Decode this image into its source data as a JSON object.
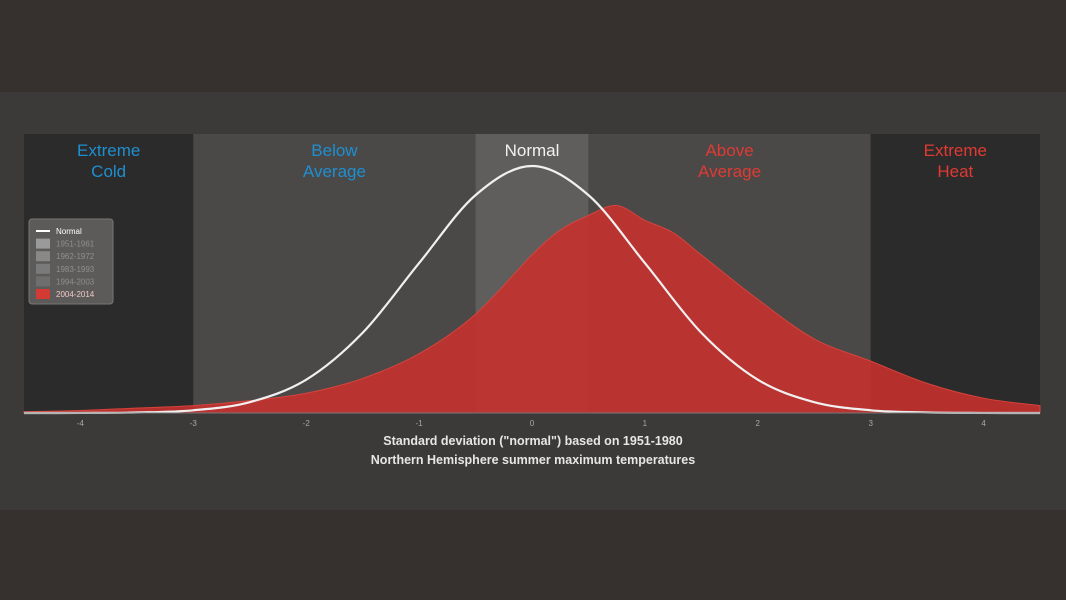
{
  "chart_data": {
    "type": "area",
    "xlim": [
      -4.5,
      4.5
    ],
    "ylim": [
      0,
      1
    ],
    "x_ticks": [
      "-4",
      "-3",
      "-2",
      "-1",
      "0",
      "1",
      "2",
      "3",
      "4"
    ],
    "regions": [
      {
        "name": "extreme-cold",
        "lines": [
          "Extreme",
          "Cold"
        ],
        "x": [
          -4.5,
          -3
        ],
        "color": "#1e8fd0"
      },
      {
        "name": "below-average",
        "lines": [
          "Below",
          "Average"
        ],
        "x": [
          -3,
          -0.5
        ],
        "color": "#1e8fd0"
      },
      {
        "name": "normal",
        "lines": [
          "Normal"
        ],
        "x": [
          -0.5,
          0.5
        ],
        "color": "#f2f2f2"
      },
      {
        "name": "above-average",
        "lines": [
          "Above",
          "Average"
        ],
        "x": [
          0.5,
          3
        ],
        "color": "#e03a33"
      },
      {
        "name": "extreme-heat",
        "lines": [
          "Extreme",
          "Heat"
        ],
        "x": [
          3,
          4.5
        ],
        "color": "#e03a33"
      }
    ],
    "series": [
      {
        "name": "Normal",
        "kind": "line",
        "color": "#f0f0f0",
        "x": [
          -4.5,
          -4,
          -3.5,
          -3,
          -2.5,
          -2,
          -1.5,
          -1,
          -0.5,
          0,
          0.5,
          1,
          1.5,
          2,
          2.5,
          3,
          3.5,
          4,
          4.5
        ],
        "y": [
          0.0,
          0.0003,
          0.002,
          0.011,
          0.044,
          0.135,
          0.325,
          0.607,
          0.882,
          1.0,
          0.882,
          0.607,
          0.325,
          0.135,
          0.044,
          0.011,
          0.002,
          0.0003,
          0.0
        ]
      },
      {
        "name": "2004-2014",
        "kind": "area",
        "color": "#c8302c",
        "x": [
          -4.5,
          -4,
          -3.5,
          -3,
          -2.5,
          -2,
          -1.5,
          -1,
          -0.5,
          0,
          0.25,
          0.5,
          0.75,
          1,
          1.25,
          1.5,
          2,
          2.5,
          3,
          3.5,
          4,
          4.5
        ],
        "y": [
          0.005,
          0.01,
          0.02,
          0.03,
          0.05,
          0.08,
          0.14,
          0.24,
          0.4,
          0.64,
          0.74,
          0.8,
          0.84,
          0.78,
          0.73,
          0.64,
          0.46,
          0.3,
          0.21,
          0.12,
          0.06,
          0.03
        ]
      }
    ],
    "legend": {
      "placement": "left",
      "entries": [
        {
          "name": "Normal",
          "color": "#ffffff",
          "kind": "line"
        },
        {
          "name": "1951-1961",
          "color": "#9a9a9a",
          "kind": "box"
        },
        {
          "name": "1962-1972",
          "color": "#888888",
          "kind": "box"
        },
        {
          "name": "1983-1993",
          "color": "#7a7a7a",
          "kind": "box"
        },
        {
          "name": "1994-2003",
          "color": "#6e6e6e",
          "kind": "box"
        },
        {
          "name": "2004-2014",
          "color": "#d33a34",
          "kind": "box"
        }
      ]
    },
    "caption": [
      "Standard deviation (\"normal\") based on 1951-1980",
      "Northern Hemisphere summer maximum temperatures"
    ],
    "grid": false
  }
}
